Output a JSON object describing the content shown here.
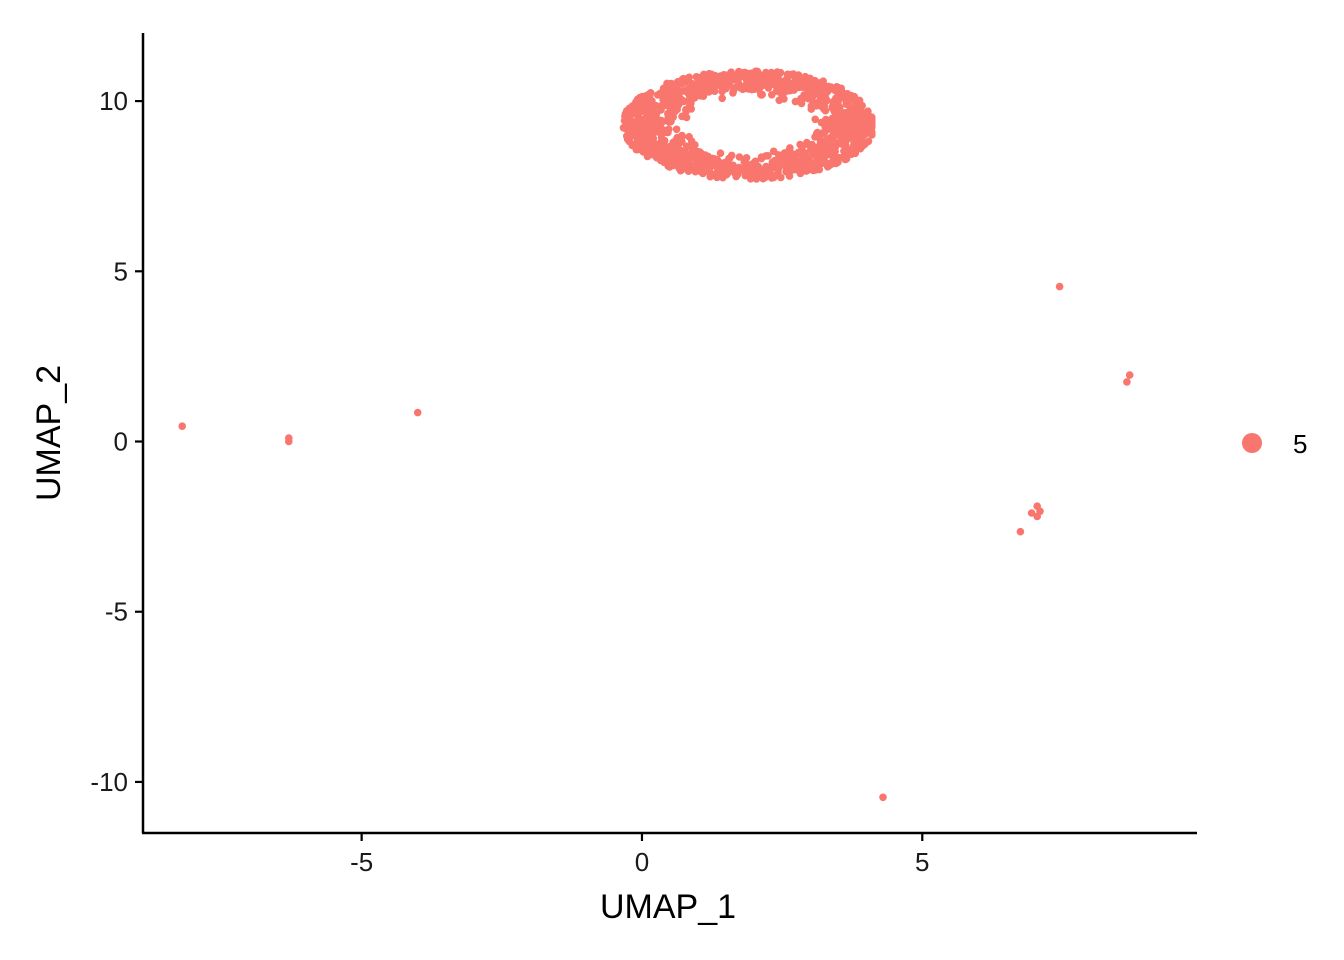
{
  "chart_data": {
    "type": "scatter",
    "title": "",
    "xlabel": "UMAP_1",
    "ylabel": "UMAP_2",
    "xlim": [
      -8.9,
      9.9
    ],
    "ylim": [
      -11.5,
      12.0
    ],
    "x_ticks": [
      -5,
      0,
      5
    ],
    "x_tick_labels": [
      "-5",
      "0",
      "5"
    ],
    "y_ticks": [
      -10,
      -5,
      0,
      5,
      10
    ],
    "y_tick_labels": [
      "-10",
      "-5",
      "0",
      "5",
      "10"
    ],
    "grid": false,
    "legend_position": "right",
    "series": [
      {
        "name": "5",
        "color": "#F8766D",
        "cluster": {
          "center": [
            1.9,
            9.3
          ],
          "x_range": [
            -0.4,
            4.1
          ],
          "y_range": [
            7.7,
            10.9
          ],
          "approx_points": 1200,
          "shape": "ring"
        },
        "points": [
          [
            -8.2,
            0.45
          ],
          [
            -6.3,
            0.1
          ],
          [
            -6.3,
            0.0
          ],
          [
            -4.0,
            0.85
          ],
          [
            7.45,
            4.55
          ],
          [
            8.7,
            1.95
          ],
          [
            8.65,
            1.75
          ],
          [
            7.05,
            -1.9
          ],
          [
            6.95,
            -2.1
          ],
          [
            7.05,
            -2.2
          ],
          [
            7.1,
            -2.05
          ],
          [
            6.75,
            -2.65
          ],
          [
            4.3,
            -10.45
          ]
        ]
      }
    ]
  }
}
